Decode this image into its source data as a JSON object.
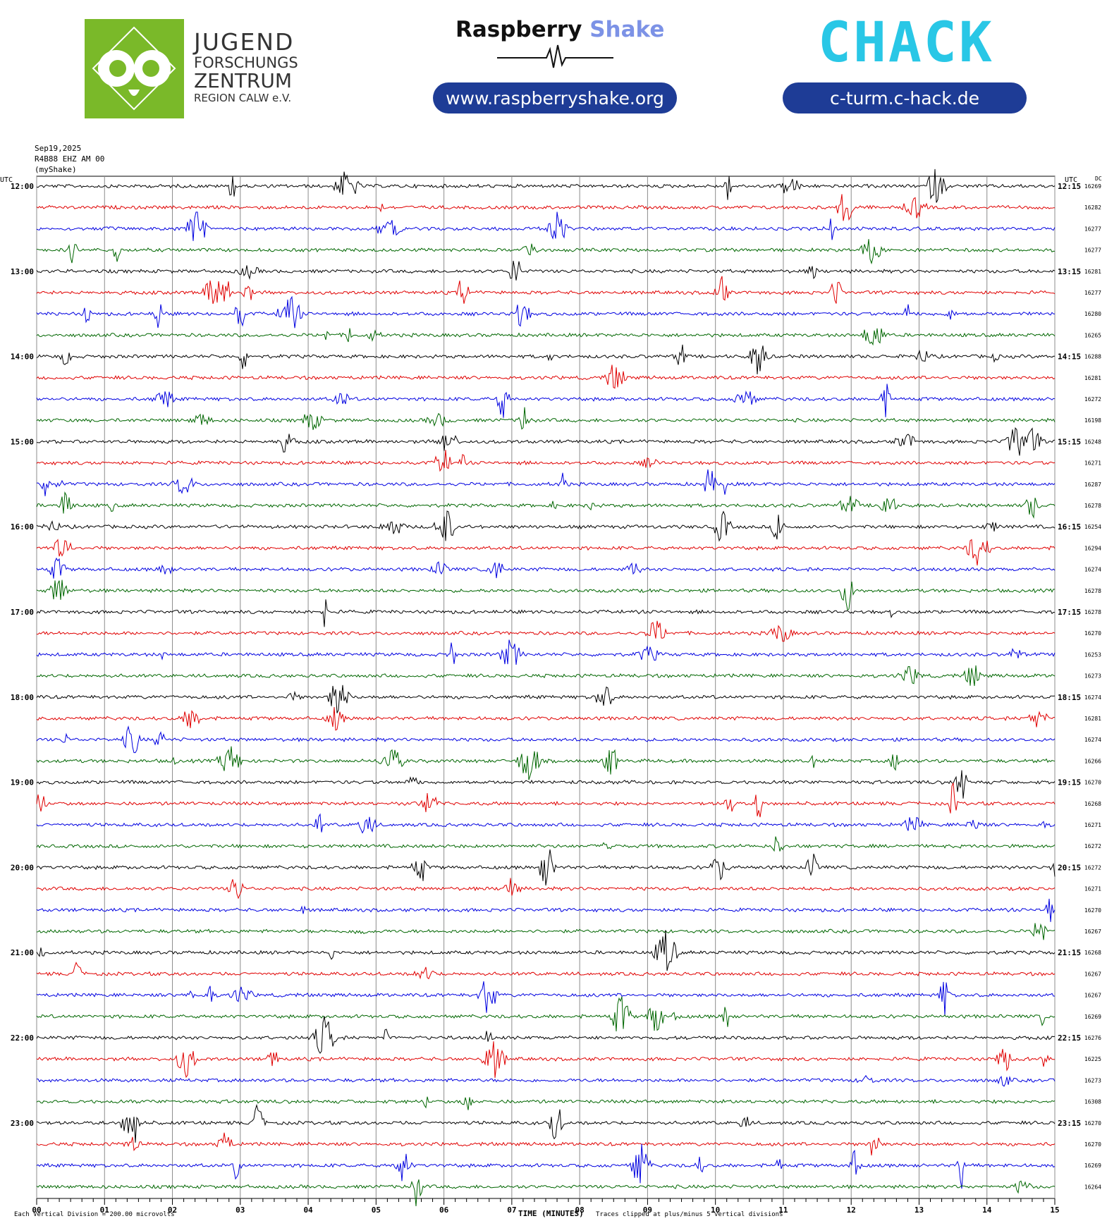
{
  "header": {
    "jfz": {
      "line1": "JUGEND",
      "line2": "FORSCHUNGS",
      "line3": "ZENTRUM",
      "line4": "REGION CALW e.V."
    },
    "rs": {
      "brand1": "Raspberry",
      "brand2": "Shake",
      "url": "www.raspberryshake.org"
    },
    "chack": {
      "logo": "CHACK",
      "url": "c-turm.c-hack.de"
    },
    "colors": {
      "jfz_green": "#7ab929",
      "pill_blue": "#1e3c96",
      "chack_green": "#7ac943",
      "chack_cyan": "#29c7e6",
      "rs_blue": "#7c92e6"
    }
  },
  "meta": {
    "date": "Sep19,2025",
    "station": "R4B88 EHZ AM 00",
    "network": "(myShake)"
  },
  "footer": {
    "scale": "Each Vertical Division = 200.00 microvolts",
    "xlabel": "TIME (MINUTES)",
    "clip_note": "Traces clipped at plus/minus 5 vertical divisions"
  },
  "chart_data": {
    "type": "line",
    "title": "",
    "xlabel": "TIME (MINUTES)",
    "xlim": [
      0,
      15
    ],
    "x_ticks": [
      "00",
      "01",
      "02",
      "03",
      "04",
      "05",
      "06",
      "07",
      "08",
      "09",
      "10",
      "11",
      "12",
      "13",
      "14",
      "15"
    ],
    "left_axis_label": "UTC",
    "right_axis_label": "UTC",
    "dc_label": "DC",
    "trace_colors": [
      "#000000",
      "#e00000",
      "#0000e0",
      "#006600"
    ],
    "left_time_labels": [
      "12:00",
      "13:00",
      "14:00",
      "15:00",
      "16:00",
      "17:00",
      "18:00",
      "19:00",
      "20:00",
      "21:00",
      "22:00",
      "23:00"
    ],
    "right_time_labels": [
      "12:15",
      "13:15",
      "14:15",
      "15:15",
      "16:15",
      "17:15",
      "18:15",
      "19:15",
      "20:15",
      "21:15",
      "22:15",
      "23:15"
    ],
    "dc_values": [
      16269,
      16282,
      16277,
      16277,
      16281,
      16277,
      16280,
      16265,
      16288,
      16281,
      16272,
      16198,
      16248,
      16271,
      16287,
      16278,
      16254,
      16294,
      16274,
      16278,
      16278,
      16270,
      16253,
      16273,
      16274,
      16281,
      16274,
      16266,
      16270,
      16268,
      16271,
      16272,
      16272,
      16271,
      16270,
      16267,
      16268,
      16267,
      16267,
      16269,
      16276,
      16225,
      16273,
      16308,
      16270,
      16270,
      16269,
      16264
    ],
    "grid": true,
    "traces_per_row": 48,
    "minutes_per_trace": 15
  }
}
